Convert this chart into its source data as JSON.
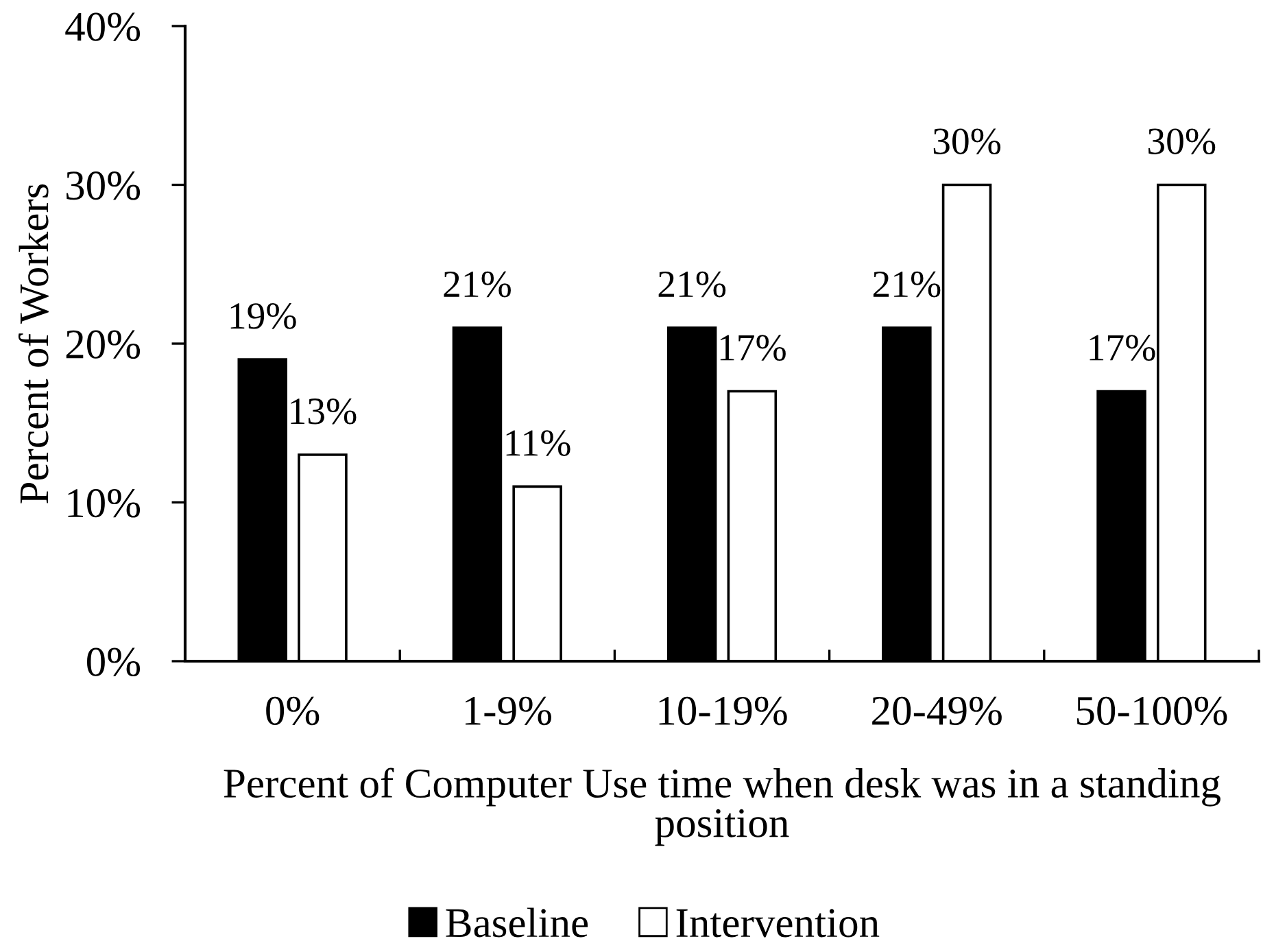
{
  "chart_data": {
    "type": "bar",
    "xlabel": "Percent of Computer Use time when desk was in a standing position",
    "ylabel": "Percent of Workers",
    "categories": [
      "0%",
      "1-9%",
      "10-19%",
      "20-49%",
      "50-100%"
    ],
    "series": [
      {
        "name": "Baseline",
        "color": "#000000",
        "values": [
          19,
          21,
          21,
          21,
          17
        ],
        "value_labels": [
          "19%",
          "21%",
          "21%",
          "21%",
          "17%"
        ]
      },
      {
        "name": "Intervention",
        "color": "#ffffff",
        "values": [
          13,
          11,
          17,
          30,
          30
        ],
        "value_labels": [
          "13%",
          "11%",
          "17%",
          "30%",
          "30%"
        ]
      }
    ],
    "ylim": [
      0,
      40
    ],
    "yticks": [
      {
        "value": 0,
        "label": "0%"
      },
      {
        "value": 10,
        "label": "10%"
      },
      {
        "value": 20,
        "label": "20%"
      },
      {
        "value": 30,
        "label": "30%"
      },
      {
        "value": 40,
        "label": "40%"
      }
    ],
    "legend": "bottom"
  }
}
